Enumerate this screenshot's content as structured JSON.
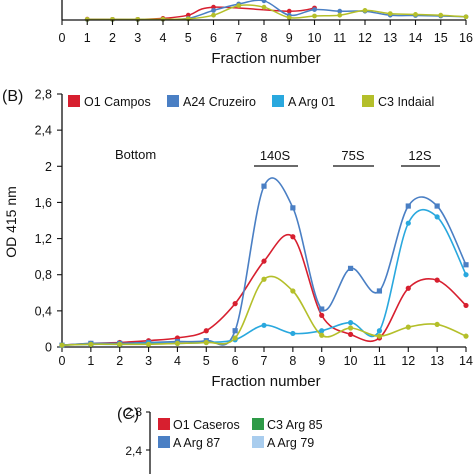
{
  "panel_a": {
    "xlabel": "Fraction number",
    "ticks": [
      "0",
      "1",
      "2",
      "3",
      "4",
      "5",
      "6",
      "7",
      "8",
      "9",
      "10",
      "11",
      "12",
      "13",
      "14",
      "15",
      "16"
    ],
    "series": [
      {
        "name": "red",
        "color": "#d71f2f",
        "x": [
          1,
          2,
          3,
          4,
          5,
          6,
          9,
          10
        ],
        "y": [
          0.05,
          0.04,
          0.04,
          0.1,
          0.3,
          0.8,
          0.55,
          0.75
        ]
      },
      {
        "name": "blue",
        "color": "#4a7fc4",
        "x": [
          1,
          2,
          3,
          4,
          5,
          6,
          7,
          8,
          9,
          10,
          11,
          12,
          13,
          14,
          15,
          16
        ],
        "y": [
          0.03,
          0.03,
          0.03,
          0.04,
          0.1,
          0.6,
          1.0,
          1.2,
          0.3,
          0.65,
          0.55,
          0.55,
          0.3,
          0.28,
          0.25,
          0.2
        ]
      },
      {
        "name": "yellow",
        "color": "#b4bf2a",
        "x": [
          1,
          2,
          3,
          4,
          5,
          6,
          7,
          8,
          9,
          10,
          11,
          12,
          13,
          14,
          15,
          16
        ],
        "y": [
          0.04,
          0.04,
          0.04,
          0.05,
          0.07,
          0.3,
          0.9,
          0.8,
          0.15,
          0.25,
          0.3,
          0.6,
          0.4,
          0.35,
          0.3,
          0.2
        ]
      }
    ]
  },
  "panel_b": {
    "label": "(B)",
    "chart_data": {
      "type": "line",
      "xlabel": "Fraction number",
      "ylabel": "OD 415 nm",
      "xlim": [
        0,
        14
      ],
      "ylim": [
        0,
        2.8
      ],
      "xticks": [
        "0",
        "1",
        "2",
        "3",
        "4",
        "5",
        "6",
        "7",
        "8",
        "9",
        "10",
        "11",
        "12",
        "13",
        "14"
      ],
      "yticks": [
        "0",
        "0,4",
        "0,8",
        "1,2",
        "1,6",
        "2",
        "2,4",
        "2,8"
      ],
      "legend": "top",
      "annotations": [
        {
          "text": "Bottom",
          "x": 7.5
        },
        {
          "text": "140S",
          "x": 7.5
        },
        {
          "text": "75S",
          "x": 10
        },
        {
          "text": "12S",
          "x": 12.5
        }
      ],
      "series": [
        {
          "name": "O1 Campos",
          "color": "#d71f2f",
          "x": [
            0,
            1,
            2,
            3,
            4,
            5,
            6,
            7,
            8,
            9,
            10,
            11,
            12,
            13,
            14
          ],
          "y": [
            0.02,
            0.04,
            0.05,
            0.07,
            0.1,
            0.18,
            0.48,
            0.95,
            1.22,
            0.35,
            0.14,
            0.1,
            0.65,
            0.74,
            0.46
          ]
        },
        {
          "name": "A24 Cruzeiro",
          "color": "#4a7fc4",
          "x": [
            0,
            1,
            2,
            3,
            4,
            5,
            6,
            7,
            8,
            9,
            10,
            11,
            12,
            13,
            14
          ],
          "y": [
            0.02,
            0.04,
            0.04,
            0.05,
            0.06,
            0.07,
            0.18,
            1.78,
            1.54,
            0.42,
            0.87,
            0.62,
            1.56,
            1.56,
            0.91
          ]
        },
        {
          "name": "A Arg 01",
          "color": "#29a8de",
          "x": [
            0,
            1,
            2,
            3,
            4,
            5,
            6,
            7,
            8,
            9,
            10,
            11,
            12,
            13,
            14
          ],
          "y": [
            0.02,
            0.03,
            0.03,
            0.04,
            0.04,
            0.05,
            0.08,
            0.24,
            0.15,
            0.18,
            0.27,
            0.18,
            1.37,
            1.44,
            0.8
          ]
        },
        {
          "name": "C3 Indaial",
          "color": "#b4bf2a",
          "x": [
            0,
            1,
            2,
            3,
            4,
            5,
            6,
            7,
            8,
            9,
            10,
            11,
            12,
            13,
            14
          ],
          "y": [
            0.02,
            0.03,
            0.03,
            0.03,
            0.04,
            0.05,
            0.1,
            0.75,
            0.62,
            0.13,
            0.21,
            0.12,
            0.22,
            0.25,
            0.12
          ]
        }
      ]
    }
  },
  "panel_c": {
    "label": "(C)",
    "yticks": [
      "2,8",
      "2,4"
    ],
    "legend": [
      {
        "name": "O1 Caseros",
        "color": "#d71f2f"
      },
      {
        "name": "C3 Arg 85",
        "color": "#2e9a47"
      },
      {
        "name": "A Arg 87",
        "color": "#4a7fc4"
      },
      {
        "name": "A Arg 79",
        "color": "#a9cdee"
      }
    ]
  }
}
